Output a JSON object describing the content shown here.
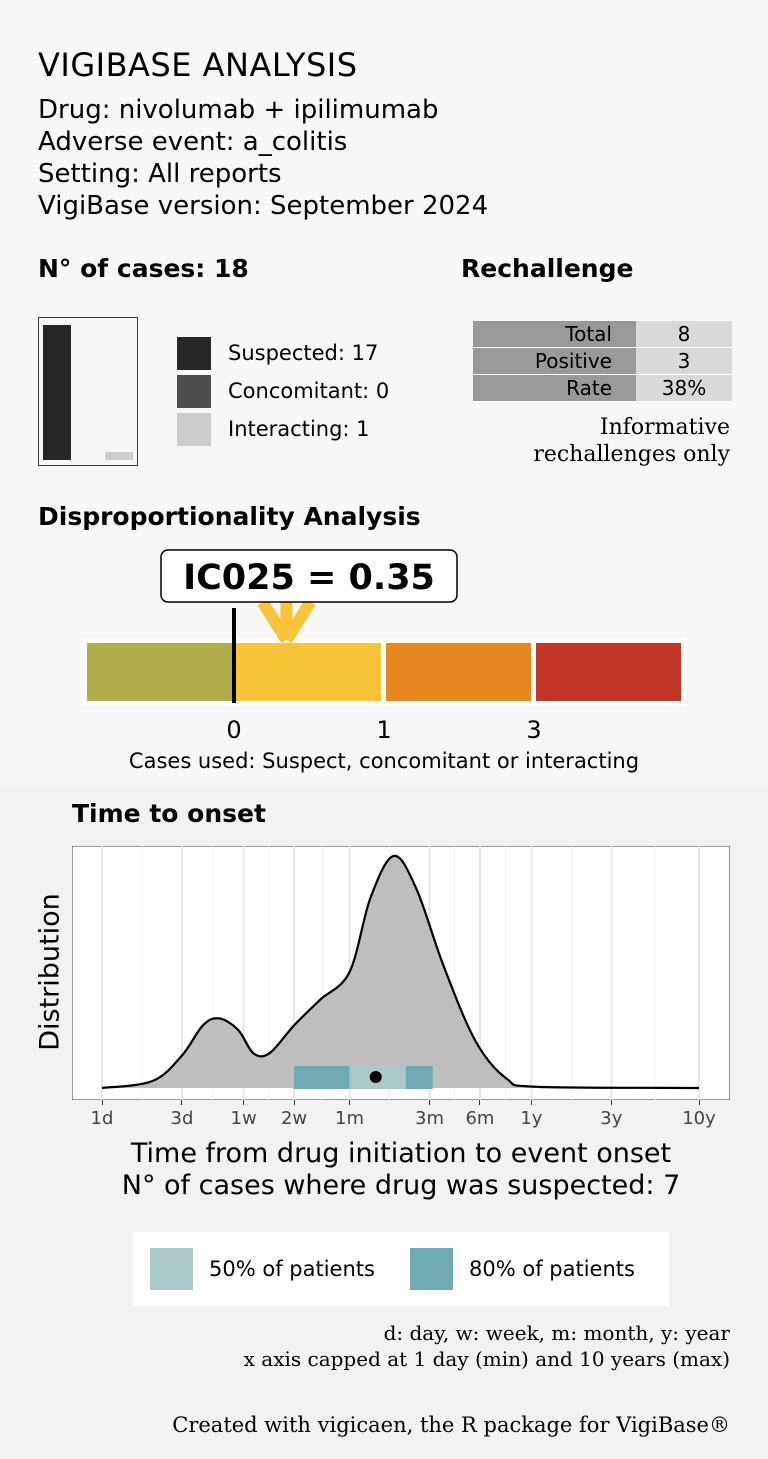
{
  "header": {
    "title": "VIGIBASE ANALYSIS",
    "drug": "Drug: nivolumab + ipilimumab",
    "event": "Adverse event: a_colitis",
    "setting": "Setting: All reports",
    "version": "VigiBase version: September 2024"
  },
  "cases": {
    "title": "N° of cases: 18",
    "legend": [
      {
        "label": "Suspected: 17",
        "value": 17,
        "color": "#262626"
      },
      {
        "label": "Concomitant: 0",
        "value": 0,
        "color": "#4d4d4d"
      },
      {
        "label": "Interacting: 1",
        "value": 1,
        "color": "#cccccc"
      }
    ]
  },
  "rechallenge": {
    "title": "Rechallenge",
    "rows": [
      {
        "key": "Total",
        "value": "8"
      },
      {
        "key": "Positive",
        "value": "3"
      },
      {
        "key": "Rate",
        "value": "38%"
      }
    ],
    "note1": "Informative",
    "note2": "rechallenges only"
  },
  "disproportionality": {
    "title": "Disproportionality Analysis",
    "ic_label": "IC025 = 0.35",
    "ic025": 0.35,
    "thresholds": [
      "0",
      "1",
      "3"
    ],
    "segment_colors": [
      "#b0ad4b",
      "#f8c43a",
      "#e8871f",
      "#c13526"
    ],
    "arrow_color": "#f8c43a",
    "caption": "Cases used: Suspect, concomitant or interacting"
  },
  "time_to_onset": {
    "title": "Time to onset",
    "ylabel": "Distribution",
    "xlabel": "Time from drug initiation to event onset",
    "caption": "N° of cases where drug was suspected: 7",
    "legend": [
      {
        "label": "50% of patients",
        "color": "#abc9c9"
      },
      {
        "label": "80% of patients",
        "color": "#6faab2"
      }
    ],
    "note1": "d: day, w: week, m: month, y: year",
    "note2": "x axis capped at 1 day (min) and 10 years (max)"
  },
  "chart_data": {
    "type": "area",
    "x_scale": "log (days)",
    "x_ticks": [
      {
        "label": "1d",
        "days": 1
      },
      {
        "label": "3d",
        "days": 3
      },
      {
        "label": "1w",
        "days": 7
      },
      {
        "label": "2w",
        "days": 14
      },
      {
        "label": "1m",
        "days": 30
      },
      {
        "label": "3m",
        "days": 90
      },
      {
        "label": "6m",
        "days": 180
      },
      {
        "label": "1y",
        "days": 365
      },
      {
        "label": "3y",
        "days": 1095
      },
      {
        "label": "10y",
        "days": 3650
      }
    ],
    "xlim_days": [
      1,
      3650
    ],
    "density": [
      {
        "days": 1,
        "y": 0.0
      },
      {
        "days": 2,
        "y": 0.03
      },
      {
        "days": 3,
        "y": 0.14
      },
      {
        "days": 4,
        "y": 0.27
      },
      {
        "days": 5,
        "y": 0.3
      },
      {
        "days": 6.5,
        "y": 0.25
      },
      {
        "days": 8,
        "y": 0.15
      },
      {
        "days": 10,
        "y": 0.15
      },
      {
        "days": 14,
        "y": 0.27
      },
      {
        "days": 20,
        "y": 0.38
      },
      {
        "days": 30,
        "y": 0.5
      },
      {
        "days": 40,
        "y": 0.82
      },
      {
        "days": 55,
        "y": 1.0
      },
      {
        "days": 75,
        "y": 0.86
      },
      {
        "days": 110,
        "y": 0.52
      },
      {
        "days": 170,
        "y": 0.2
      },
      {
        "days": 260,
        "y": 0.04
      },
      {
        "days": 400,
        "y": 0.005
      },
      {
        "days": 3650,
        "y": 0.0
      }
    ],
    "median_days": 43,
    "interval_50_days": [
      30,
      65
    ],
    "interval_80_days": [
      14,
      94
    ],
    "grid": true
  },
  "footer": "Created with vigicaen, the R package for VigiBase®"
}
